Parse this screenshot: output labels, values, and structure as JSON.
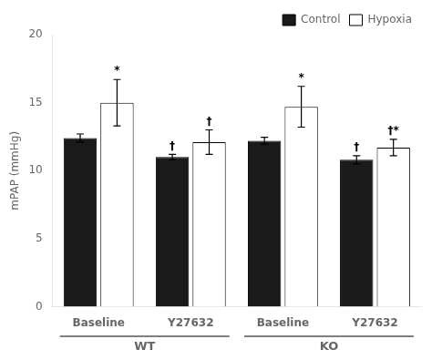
{
  "chart_data": {
    "type": "bar",
    "categories": [
      "Baseline",
      "Y27632",
      "Baseline",
      "Y27632"
    ],
    "series": [
      {
        "name": "Control",
        "color": "#1a1a1a",
        "values": [
          12.4,
          11.0,
          12.2,
          10.8
        ],
        "errors": [
          0.3,
          0.2,
          0.25,
          0.3
        ],
        "annotations": [
          null,
          "†",
          null,
          "†"
        ]
      },
      {
        "name": "Hypoxia",
        "color": "#ffffff",
        "values": [
          15.0,
          12.1,
          14.7,
          11.7
        ],
        "errors": [
          1.7,
          0.9,
          1.5,
          0.6
        ],
        "annotations": [
          "*",
          "†",
          "*",
          "†*"
        ]
      }
    ],
    "super_labels": [
      {
        "text": "WT",
        "categories": [
          0,
          1
        ]
      },
      {
        "text": "KO",
        "categories": [
          2,
          3
        ]
      }
    ],
    "y_label": "mPAP (mmHg)",
    "ylim": [
      0,
      20
    ],
    "yticks": [
      0,
      5,
      10,
      15,
      20
    ],
    "grid": false,
    "legend": "upper right"
  }
}
